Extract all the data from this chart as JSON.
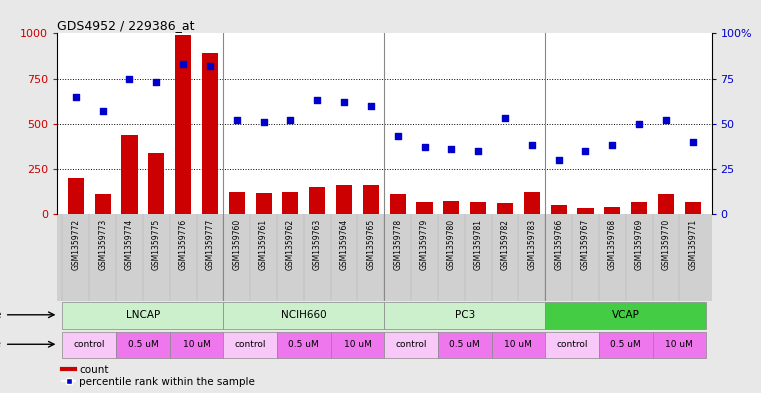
{
  "title": "GDS4952 / 229386_at",
  "samples": [
    "GSM1359772",
    "GSM1359773",
    "GSM1359774",
    "GSM1359775",
    "GSM1359776",
    "GSM1359777",
    "GSM1359760",
    "GSM1359761",
    "GSM1359762",
    "GSM1359763",
    "GSM1359764",
    "GSM1359765",
    "GSM1359778",
    "GSM1359779",
    "GSM1359780",
    "GSM1359781",
    "GSM1359782",
    "GSM1359783",
    "GSM1359766",
    "GSM1359767",
    "GSM1359768",
    "GSM1359769",
    "GSM1359770",
    "GSM1359771"
  ],
  "counts": [
    200,
    110,
    440,
    340,
    990,
    890,
    120,
    115,
    120,
    150,
    160,
    160,
    110,
    65,
    75,
    65,
    60,
    120,
    50,
    35,
    40,
    70,
    110,
    65
  ],
  "percentile": [
    65,
    57,
    75,
    73,
    83,
    82,
    52,
    51,
    52,
    63,
    62,
    60,
    43,
    37,
    36,
    35,
    53,
    38,
    30,
    35,
    38,
    50,
    52,
    40
  ],
  "cell_lines": [
    {
      "name": "LNCAP",
      "start": 0,
      "end": 6,
      "color": "#ccf0cc"
    },
    {
      "name": "NCIH660",
      "start": 6,
      "end": 12,
      "color": "#ccf0cc"
    },
    {
      "name": "PC3",
      "start": 12,
      "end": 18,
      "color": "#ccf0cc"
    },
    {
      "name": "VCAP",
      "start": 18,
      "end": 24,
      "color": "#44cc44"
    }
  ],
  "dose_groups": [
    {
      "label": "control",
      "start": 0,
      "end": 2,
      "color": "#f8c8f8"
    },
    {
      "label": "0.5 uM",
      "start": 2,
      "end": 4,
      "color": "#ee77ee"
    },
    {
      "label": "10 uM",
      "start": 4,
      "end": 6,
      "color": "#ee77ee"
    },
    {
      "label": "control",
      "start": 6,
      "end": 8,
      "color": "#f8c8f8"
    },
    {
      "label": "0.5 uM",
      "start": 8,
      "end": 10,
      "color": "#ee77ee"
    },
    {
      "label": "10 uM",
      "start": 10,
      "end": 12,
      "color": "#ee77ee"
    },
    {
      "label": "control",
      "start": 12,
      "end": 14,
      "color": "#f8c8f8"
    },
    {
      "label": "0.5 uM",
      "start": 14,
      "end": 16,
      "color": "#ee77ee"
    },
    {
      "label": "10 uM",
      "start": 16,
      "end": 18,
      "color": "#ee77ee"
    },
    {
      "label": "control",
      "start": 18,
      "end": 20,
      "color": "#f8c8f8"
    },
    {
      "label": "0.5 uM",
      "start": 20,
      "end": 22,
      "color": "#ee77ee"
    },
    {
      "label": "10 uM",
      "start": 22,
      "end": 24,
      "color": "#ee77ee"
    }
  ],
  "bar_color": "#CC0000",
  "dot_color": "#0000CC",
  "ylim_left": [
    0,
    1000
  ],
  "ylim_right": [
    0,
    100
  ],
  "yticks_left": [
    0,
    250,
    500,
    750,
    1000
  ],
  "yticks_right": [
    0,
    25,
    50,
    75,
    100
  ],
  "bg_color": "#e8e8e8",
  "plot_bg": "#ffffff",
  "label_bg": "#d0d0d0"
}
